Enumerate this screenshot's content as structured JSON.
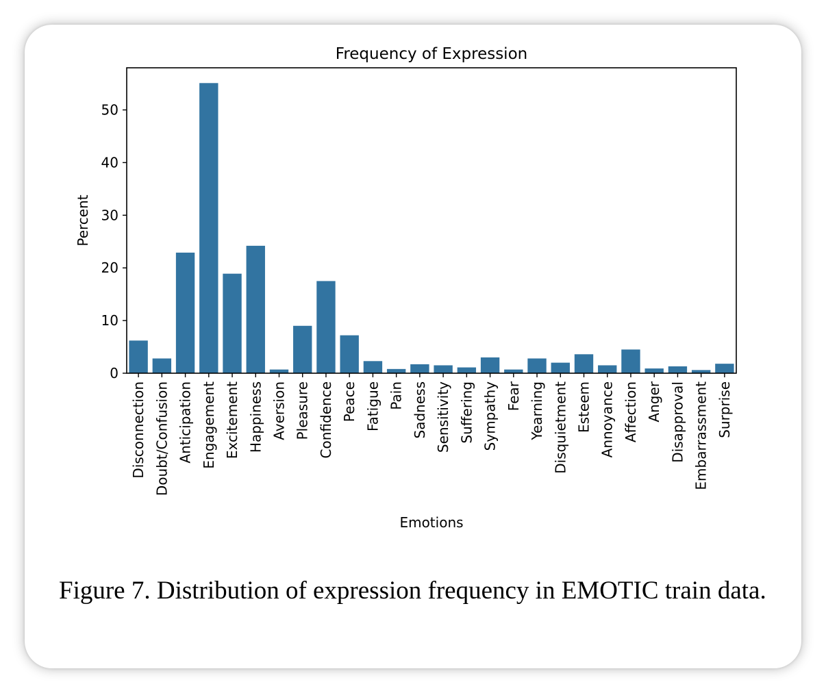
{
  "caption": "Figure 7.  Distribution of expression frequency in EMOTIC train data.",
  "chart_data": {
    "type": "bar",
    "title": "Frequency of Expression",
    "xlabel": "Emotions",
    "ylabel": "Percent",
    "ylim": [
      0,
      58
    ],
    "yticks": [
      0,
      10,
      20,
      30,
      40,
      50
    ],
    "grid": false,
    "bar_color": "#3274a1",
    "categories": [
      "Disconnection",
      "Doubt/Confusion",
      "Anticipation",
      "Engagement",
      "Excitement",
      "Happiness",
      "Aversion",
      "Pleasure",
      "Confidence",
      "Peace",
      "Fatigue",
      "Pain",
      "Sadness",
      "Sensitivity",
      "Suffering",
      "Sympathy",
      "Fear",
      "Yearning",
      "Disquietment",
      "Esteem",
      "Annoyance",
      "Affection",
      "Anger",
      "Disapproval",
      "Embarrassment",
      "Surprise"
    ],
    "values": [
      6.2,
      2.8,
      22.9,
      55.1,
      18.9,
      24.2,
      0.7,
      9.0,
      17.5,
      7.2,
      2.3,
      0.8,
      1.7,
      1.5,
      1.1,
      3.0,
      0.7,
      2.8,
      2.0,
      3.6,
      1.5,
      4.5,
      0.9,
      1.3,
      0.6,
      1.8
    ]
  }
}
